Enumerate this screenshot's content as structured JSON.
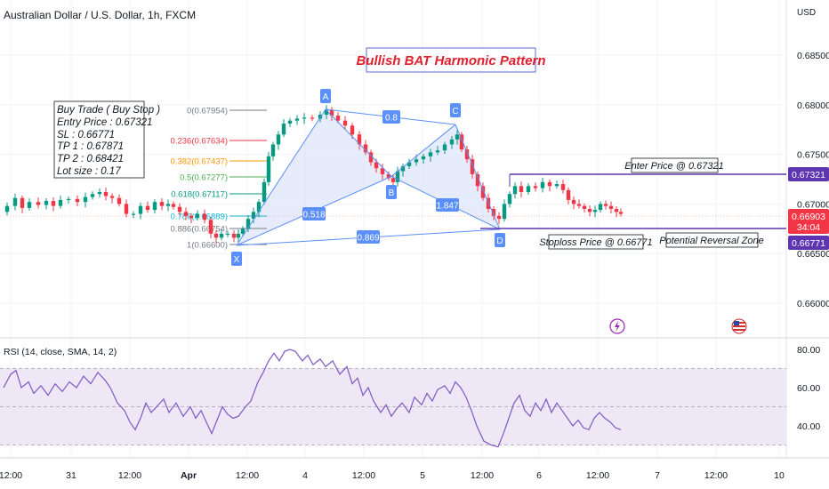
{
  "header": {
    "title": "Australian Dollar / U.S. Dollar, 1h, FXCM",
    "currency": "USD"
  },
  "annotations": {
    "pattern_title": "Bullish BAT Harmonic Pattern",
    "trade_box": [
      "Buy Trade ( Buy Stop )",
      "Entry Price : 0.67321",
      "SL : 0.66771",
      "TP 1 : 0.67871",
      "TP 2 : 0.68421",
      "Lot size : 0.17"
    ],
    "enter_label": "Enter Price @ 0.67321",
    "stop_label": "Stoploss Price @ 0.66771",
    "prz_label": "Potential Reversal Zone",
    "ratio_ab": "0.8",
    "ratio_xb": "0.518",
    "ratio_bc": "1.847",
    "ratio_xd": "0.869"
  },
  "price_badges": {
    "entry": "0.67321",
    "current": "0.66903",
    "countdown": "34:04",
    "stop": "0.66771"
  },
  "colors": {
    "up": "#089981",
    "down": "#f23645",
    "harmonic": "#5b8ff9",
    "harmonic_fill": "#dde6fb",
    "level_line": "#5e35b1",
    "rsi_line": "#7e57c2",
    "rsi_band": "#ede7f6",
    "title_red": "#e0202e"
  },
  "chart_data": [
    {
      "type": "candlestick",
      "title": "Australian Dollar / U.S. Dollar, 1h, FXCM",
      "y_axis_label": "USD",
      "y_ticks": [
        0.685,
        0.68,
        0.675,
        0.67,
        0.665,
        0.66
      ],
      "ylim": [
        0.6589,
        0.6875
      ],
      "x_ticks": [
        "12:00",
        "31",
        "12:00",
        "Apr",
        "12:00",
        "4",
        "12:00",
        "5",
        "12:00",
        "6",
        "12:00",
        "7",
        "12:00",
        "10"
      ],
      "close_path": [
        [
          0,
          0.6692
        ],
        [
          8,
          0.6698
        ],
        [
          18,
          0.6706
        ],
        [
          24,
          0.6696
        ],
        [
          34,
          0.6702
        ],
        [
          44,
          0.6699
        ],
        [
          52,
          0.6703
        ],
        [
          60,
          0.6698
        ],
        [
          68,
          0.6704
        ],
        [
          78,
          0.6705
        ],
        [
          88,
          0.6702
        ],
        [
          96,
          0.6707
        ],
        [
          104,
          0.671
        ],
        [
          112,
          0.6712
        ],
        [
          118,
          0.6708
        ],
        [
          126,
          0.6706
        ],
        [
          134,
          0.67
        ],
        [
          142,
          0.669
        ],
        [
          150,
          0.669
        ],
        [
          158,
          0.6698
        ],
        [
          166,
          0.6694
        ],
        [
          174,
          0.6702
        ],
        [
          182,
          0.6698
        ],
        [
          188,
          0.67
        ],
        [
          194,
          0.6697
        ],
        [
          202,
          0.6692
        ],
        [
          208,
          0.6688
        ],
        [
          214,
          0.6686
        ],
        [
          222,
          0.669
        ],
        [
          230,
          0.6684
        ],
        [
          236,
          0.667
        ],
        [
          242,
          0.6666
        ],
        [
          248,
          0.667
        ],
        [
          256,
          0.667
        ],
        [
          262,
          0.6666
        ],
        [
          266,
          0.667
        ],
        [
          272,
          0.6675
        ],
        [
          278,
          0.6685
        ],
        [
          284,
          0.6692
        ],
        [
          290,
          0.6702
        ],
        [
          296,
          0.6722
        ],
        [
          300,
          0.6748
        ],
        [
          306,
          0.676
        ],
        [
          312,
          0.677
        ],
        [
          318,
          0.6781
        ],
        [
          326,
          0.6784
        ],
        [
          334,
          0.6786
        ],
        [
          342,
          0.6787
        ],
        [
          352,
          0.6786
        ],
        [
          360,
          0.679
        ],
        [
          366,
          0.6795
        ],
        [
          372,
          0.6789
        ],
        [
          380,
          0.6784
        ],
        [
          388,
          0.6779
        ],
        [
          396,
          0.677
        ],
        [
          404,
          0.676
        ],
        [
          410,
          0.6752
        ],
        [
          416,
          0.6742
        ],
        [
          422,
          0.6736
        ],
        [
          430,
          0.673
        ],
        [
          436,
          0.6726
        ],
        [
          440,
          0.6722
        ],
        [
          446,
          0.6733
        ],
        [
          452,
          0.6738
        ],
        [
          460,
          0.6742
        ],
        [
          468,
          0.6745
        ],
        [
          476,
          0.6748
        ],
        [
          484,
          0.6752
        ],
        [
          492,
          0.6754
        ],
        [
          500,
          0.676
        ],
        [
          508,
          0.6765
        ],
        [
          512,
          0.677
        ],
        [
          518,
          0.6755
        ],
        [
          524,
          0.6745
        ],
        [
          530,
          0.673
        ],
        [
          536,
          0.6718
        ],
        [
          542,
          0.6706
        ],
        [
          548,
          0.6695
        ],
        [
          554,
          0.6688
        ],
        [
          560,
          0.6685
        ],
        [
          566,
          0.67
        ],
        [
          572,
          0.671
        ],
        [
          578,
          0.6718
        ],
        [
          586,
          0.6712
        ],
        [
          594,
          0.6718
        ],
        [
          602,
          0.6716
        ],
        [
          610,
          0.6722
        ],
        [
          618,
          0.6718
        ],
        [
          626,
          0.672
        ],
        [
          632,
          0.6714
        ],
        [
          638,
          0.6704
        ],
        [
          644,
          0.67
        ],
        [
          650,
          0.6698
        ],
        [
          656,
          0.6695
        ],
        [
          662,
          0.6692
        ],
        [
          668,
          0.6694
        ],
        [
          674,
          0.67
        ],
        [
          680,
          0.6698
        ],
        [
          686,
          0.6695
        ],
        [
          692,
          0.6692
        ],
        [
          696,
          0.669
        ]
      ],
      "harmonic_points": [
        {
          "label": "X",
          "price": 0.66771
        },
        {
          "label": "A",
          "price": 0.67954
        },
        {
          "label": "B",
          "price": 0.67277
        },
        {
          "label": "C",
          "price": 0.678
        },
        {
          "label": "D",
          "price": 0.66771
        }
      ],
      "fib_levels": [
        {
          "label": "0(0.67954)",
          "value": 0.67954
        },
        {
          "label": "0.236(0.67634)",
          "value": 0.67634
        },
        {
          "label": "0.382(0.67437)",
          "value": 0.67437
        },
        {
          "label": "0.5(0.67277)",
          "value": 0.67277
        },
        {
          "label": "0.618(0.67117)",
          "value": 0.67117
        },
        {
          "label": "0.786(0.66889)",
          "value": 0.66889
        },
        {
          "label": "0.886(0.66754)",
          "value": 0.66754
        },
        {
          "label": "1(0.66600)",
          "value": 0.666
        }
      ],
      "levels": [
        {
          "name": "entry",
          "value": 0.67321
        },
        {
          "name": "stop",
          "value": 0.66771
        },
        {
          "name": "current",
          "value": 0.66903
        }
      ]
    },
    {
      "type": "line",
      "title": "RSI (14, close, SMA, 14, 2)",
      "y_ticks": [
        80,
        60,
        40
      ],
      "ylim": [
        27,
        81
      ],
      "bands": [
        30,
        50,
        70
      ],
      "series": [
        {
          "values": [
            [
              0,
              60
            ],
            [
              8,
              67
            ],
            [
              14,
              69
            ],
            [
              20,
              60
            ],
            [
              28,
              63
            ],
            [
              34,
              57
            ],
            [
              42,
              61
            ],
            [
              50,
              56
            ],
            [
              58,
              62
            ],
            [
              66,
              58
            ],
            [
              74,
              63
            ],
            [
              82,
              60
            ],
            [
              90,
              66
            ],
            [
              98,
              62
            ],
            [
              106,
              68
            ],
            [
              114,
              64
            ],
            [
              120,
              60
            ],
            [
              128,
              52
            ],
            [
              136,
              48
            ],
            [
              142,
              42
            ],
            [
              148,
              38
            ],
            [
              154,
              44
            ],
            [
              160,
              52
            ],
            [
              166,
              47
            ],
            [
              172,
              50
            ],
            [
              180,
              54
            ],
            [
              186,
              47
            ],
            [
              194,
              52
            ],
            [
              202,
              45
            ],
            [
              210,
              50
            ],
            [
              216,
              44
            ],
            [
              222,
              48
            ],
            [
              228,
              42
            ],
            [
              234,
              36
            ],
            [
              240,
              43
            ],
            [
              246,
              50
            ],
            [
              252,
              46
            ],
            [
              258,
              44
            ],
            [
              264,
              45
            ],
            [
              272,
              50
            ],
            [
              278,
              53
            ],
            [
              286,
              63
            ],
            [
              292,
              68
            ],
            [
              298,
              74
            ],
            [
              304,
              78
            ],
            [
              310,
              74
            ],
            [
              316,
              79
            ],
            [
              322,
              80
            ],
            [
              328,
              79
            ],
            [
              336,
              74
            ],
            [
              342,
              77
            ],
            [
              348,
              72
            ],
            [
              356,
              75
            ],
            [
              362,
              71
            ],
            [
              370,
              74
            ],
            [
              378,
              67
            ],
            [
              386,
              71
            ],
            [
              392,
              62
            ],
            [
              398,
              65
            ],
            [
              404,
              56
            ],
            [
              410,
              60
            ],
            [
              416,
              53
            ],
            [
              424,
              47
            ],
            [
              430,
              51
            ],
            [
              436,
              45
            ],
            [
              442,
              49
            ],
            [
              448,
              52
            ],
            [
              456,
              47
            ],
            [
              462,
              55
            ],
            [
              470,
              51
            ],
            [
              476,
              57
            ],
            [
              482,
              53
            ],
            [
              488,
              59
            ],
            [
              496,
              61
            ],
            [
              502,
              57
            ],
            [
              508,
              63
            ],
            [
              514,
              60
            ],
            [
              520,
              55
            ],
            [
              526,
              48
            ],
            [
              532,
              40
            ],
            [
              540,
              32
            ],
            [
              548,
              30
            ],
            [
              556,
              29
            ],
            [
              562,
              36
            ],
            [
              568,
              44
            ],
            [
              574,
              52
            ],
            [
              580,
              56
            ],
            [
              586,
              48
            ],
            [
              592,
              45
            ],
            [
              598,
              52
            ],
            [
              604,
              48
            ],
            [
              610,
              54
            ],
            [
              616,
              47
            ],
            [
              622,
              52
            ],
            [
              628,
              48
            ],
            [
              634,
              44
            ],
            [
              640,
              40
            ],
            [
              646,
              43
            ],
            [
              652,
              39
            ],
            [
              658,
              38
            ],
            [
              664,
              44
            ],
            [
              670,
              47
            ],
            [
              676,
              44
            ],
            [
              682,
              42
            ],
            [
              688,
              39
            ],
            [
              694,
              38
            ]
          ]
        }
      ]
    }
  ]
}
